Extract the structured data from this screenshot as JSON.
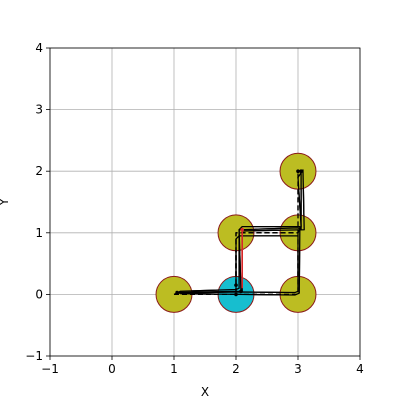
{
  "chart_data": {
    "type": "scatter",
    "title": "",
    "xlabel": "X",
    "ylabel": "Y",
    "xlim": [
      -1,
      4
    ],
    "ylim": [
      -1,
      4
    ],
    "xticks": [
      "−1",
      "0",
      "1",
      "2",
      "3",
      "4"
    ],
    "yticks": [
      "−1",
      "0",
      "1",
      "2",
      "3",
      "4"
    ],
    "grid": true,
    "nodes": [
      {
        "x": 1,
        "y": 0,
        "color": "#bcbd22"
      },
      {
        "x": 2,
        "y": 0,
        "color": "#17becf"
      },
      {
        "x": 3,
        "y": 0,
        "color": "#bcbd22"
      },
      {
        "x": 2,
        "y": 1,
        "color": "#bcbd22"
      },
      {
        "x": 3,
        "y": 1,
        "color": "#bcbd22"
      },
      {
        "x": 3,
        "y": 2,
        "color": "#bcbd22"
      }
    ],
    "node_edge_color": "#8b1a1a",
    "paths": [
      {
        "color": "#000000",
        "style": "solid",
        "points": [
          [
            1.0,
            0.0
          ],
          [
            1.1,
            0.05
          ],
          [
            2.0,
            0.08
          ],
          [
            2.05,
            0.1
          ],
          [
            2.05,
            1.05
          ],
          [
            3.0,
            1.08
          ],
          [
            3.05,
            1.05
          ],
          [
            3.05,
            2.0
          ]
        ]
      },
      {
        "color": "#000000",
        "style": "solid",
        "points": [
          [
            1.05,
            0.02
          ],
          [
            2.0,
            0.04
          ],
          [
            2.95,
            0.03
          ],
          [
            3.0,
            0.05
          ],
          [
            3.0,
            0.95
          ],
          [
            2.05,
            0.95
          ],
          [
            2.0,
            0.9
          ],
          [
            2.0,
            0.15
          ]
        ]
      },
      {
        "color": "#000000",
        "style": "solid",
        "points": [
          [
            1.1,
            0.01
          ],
          [
            2.05,
            0.0
          ],
          [
            2.95,
            -0.01
          ],
          [
            3.02,
            0.02
          ],
          [
            3.03,
            1.1
          ],
          [
            2.1,
            1.1
          ],
          [
            2.05,
            1.05
          ],
          [
            2.08,
            0.05
          ]
        ]
      },
      {
        "color": "#000000",
        "style": "solid",
        "points": [
          [
            3.0,
            1.0
          ],
          [
            3.05,
            1.1
          ],
          [
            3.0,
            1.9
          ],
          [
            3.08,
            2.02
          ],
          [
            3.1,
            1.05
          ],
          [
            2.1,
            1.03
          ],
          [
            2.1,
            0.05
          ],
          [
            1.05,
            0.03
          ]
        ]
      },
      {
        "color": "#000000",
        "style": "dashed",
        "points": [
          [
            1.0,
            0.0
          ],
          [
            2.0,
            0.0
          ],
          [
            2.0,
            1.0
          ],
          [
            3.0,
            1.0
          ],
          [
            3.0,
            2.0
          ]
        ]
      },
      {
        "color": "#000000",
        "style": "dashed",
        "points": [
          [
            2.0,
            0.0
          ],
          [
            3.0,
            0.0
          ],
          [
            3.0,
            1.0
          ],
          [
            2.0,
            1.0
          ],
          [
            2.0,
            0.0
          ]
        ]
      },
      {
        "color": "#d62728",
        "style": "solid",
        "points": [
          [
            2.1,
            0.1
          ],
          [
            2.1,
            1.05
          ]
        ]
      }
    ]
  }
}
